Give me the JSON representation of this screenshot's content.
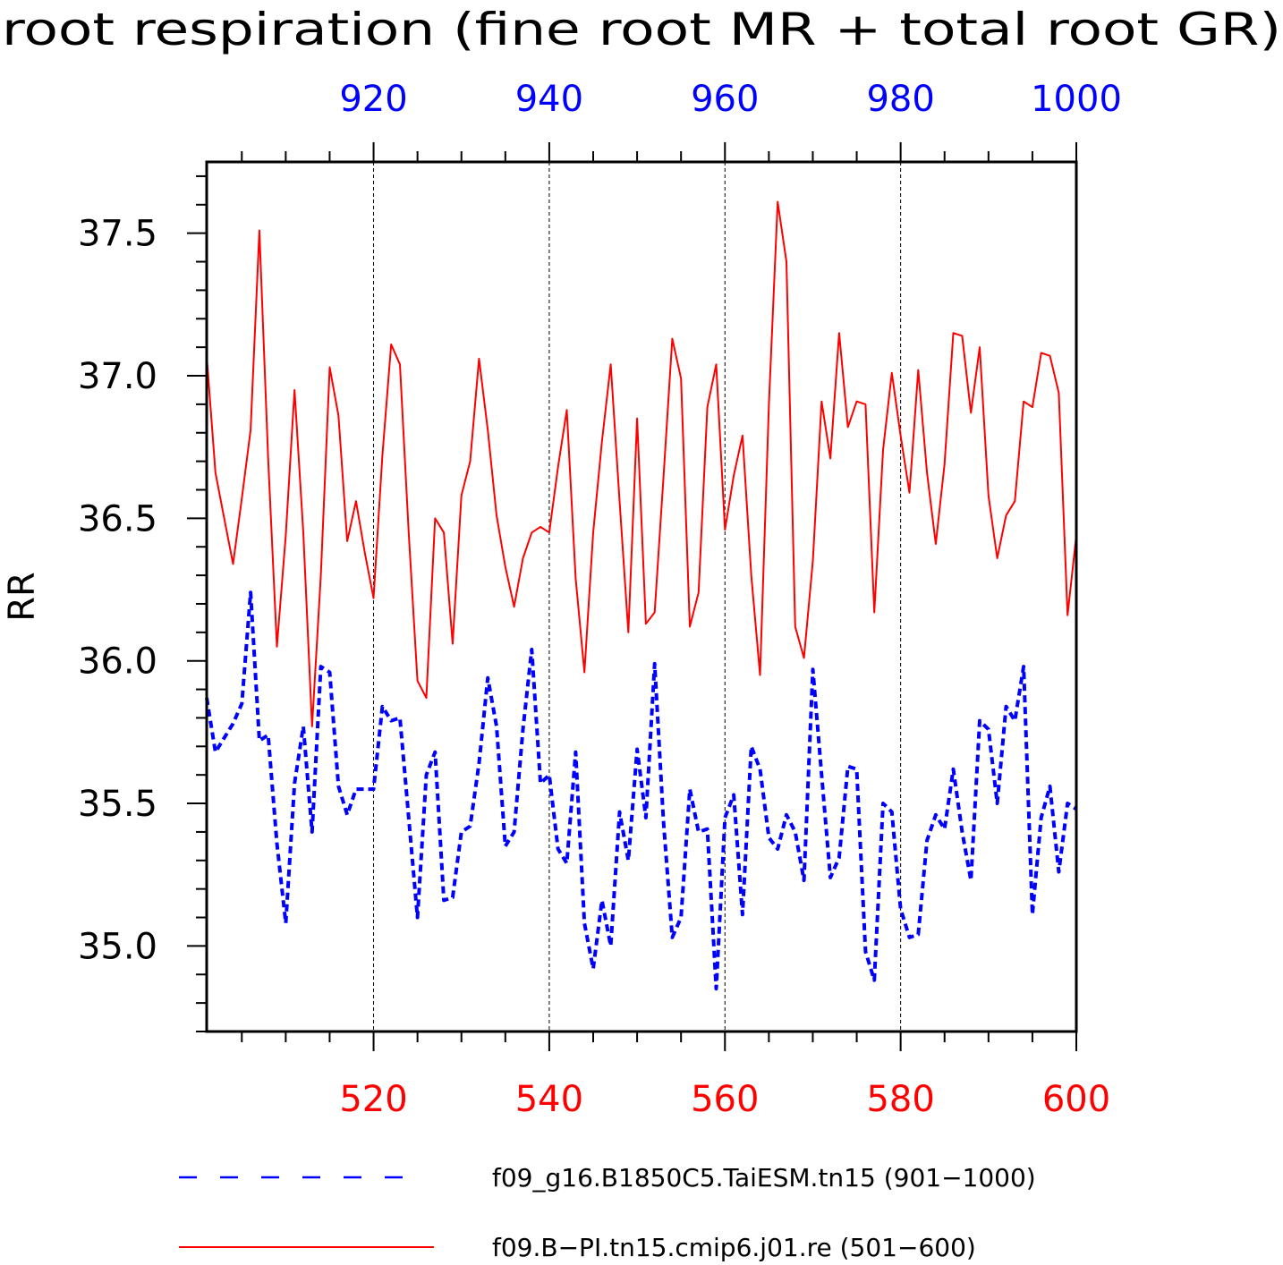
{
  "chart_data": {
    "type": "line",
    "title": "root respiration (fine root MR + total root GR)",
    "ylabel": "RR",
    "ylim": [
      34.7,
      37.75
    ],
    "yticks": [
      "35.0",
      "35.5",
      "36.0",
      "36.5",
      "37.0",
      "37.5"
    ],
    "x_bottom": {
      "range": [
        501,
        600
      ],
      "ticks": [
        520,
        540,
        560,
        580,
        600
      ],
      "color": "#ff0000"
    },
    "x_top": {
      "range": [
        901,
        1000
      ],
      "ticks": [
        920,
        940,
        960,
        980,
        1000
      ],
      "color": "#0000ff"
    },
    "gridlines_x": [
      520,
      540,
      560,
      580
    ],
    "legend_position": "bottom",
    "series": [
      {
        "name": "f09_g16.B1850C5.TaiESM.tn15 (901−1000)",
        "axis": "top",
        "color": "#0000ff",
        "style": "dashed",
        "x_start": 901,
        "values": [
          35.87,
          35.68,
          35.73,
          35.78,
          35.85,
          36.24,
          35.72,
          35.74,
          35.36,
          35.08,
          35.57,
          35.77,
          35.4,
          35.98,
          35.96,
          35.56,
          35.46,
          35.55,
          35.55,
          35.55,
          35.84,
          35.79,
          35.8,
          35.45,
          35.1,
          35.6,
          35.68,
          35.16,
          35.17,
          35.4,
          35.42,
          35.64,
          35.94,
          35.77,
          35.35,
          35.4,
          35.76,
          36.04,
          35.57,
          35.6,
          35.34,
          35.29,
          35.68,
          35.08,
          34.92,
          35.16,
          35.0,
          35.47,
          35.3,
          35.69,
          35.45,
          35.99,
          35.44,
          35.03,
          35.1,
          35.55,
          35.4,
          35.41,
          34.85,
          35.45,
          35.53,
          35.11,
          35.7,
          35.62,
          35.38,
          35.34,
          35.46,
          35.4,
          35.23,
          35.97,
          35.6,
          35.24,
          35.31,
          35.63,
          35.62,
          34.98,
          34.88,
          35.5,
          35.47,
          35.13,
          35.03,
          35.04,
          35.37,
          35.46,
          35.41,
          35.62,
          35.4,
          35.23,
          35.79,
          35.76,
          35.5,
          35.84,
          35.79,
          35.98,
          35.11,
          35.45,
          35.56,
          35.26,
          35.5,
          35.48
        ]
      },
      {
        "name": "f09.B−PI.tn15.cmip6.j01.re (501−600)",
        "axis": "bottom",
        "color": "#ff0000",
        "style": "solid",
        "x_start": 501,
        "values": [
          37.07,
          36.66,
          36.5,
          36.34,
          36.57,
          36.81,
          37.51,
          36.71,
          36.05,
          36.44,
          36.95,
          36.45,
          35.77,
          36.3,
          37.03,
          36.86,
          36.42,
          36.56,
          36.38,
          36.22,
          36.72,
          37.11,
          37.04,
          36.45,
          35.93,
          35.87,
          36.5,
          36.45,
          36.06,
          36.58,
          36.7,
          37.06,
          36.81,
          36.51,
          36.33,
          36.19,
          36.36,
          36.45,
          36.47,
          36.45,
          36.68,
          36.88,
          36.29,
          35.96,
          36.45,
          36.77,
          37.04,
          36.56,
          36.1,
          36.85,
          36.13,
          36.17,
          36.64,
          37.13,
          36.99,
          36.12,
          36.24,
          36.89,
          37.04,
          36.46,
          36.65,
          36.79,
          36.3,
          35.95,
          36.9,
          37.61,
          37.4,
          36.12,
          36.01,
          36.35,
          36.91,
          36.71,
          37.15,
          36.82,
          36.91,
          36.9,
          36.17,
          36.74,
          37.01,
          36.79,
          36.59,
          37.02,
          36.66,
          36.41,
          36.69,
          37.15,
          37.14,
          36.87,
          37.1,
          36.58,
          36.36,
          36.51,
          36.56,
          36.91,
          36.89,
          37.08,
          37.07,
          36.94,
          36.16,
          36.44
        ]
      }
    ]
  }
}
